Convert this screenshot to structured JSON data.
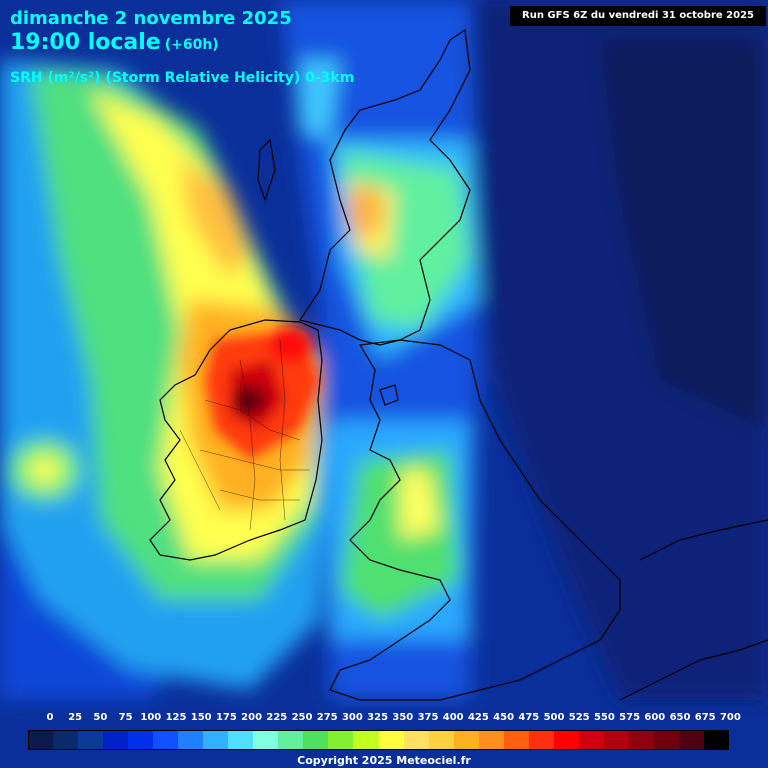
{
  "header": {
    "date": "dimanche 2 novembre 2025",
    "time": "19:00 locale",
    "lead": "(+60h)",
    "parameter": "SRH (m²/s²) (Storm Relative Helicity) 0-3km",
    "run": "Run GFS 6Z du vendredi 31 octobre 2025"
  },
  "legend": {
    "labels": [
      "0",
      "25",
      "50",
      "75",
      "100",
      "125",
      "150",
      "175",
      "200",
      "225",
      "250",
      "275",
      "300",
      "325",
      "350",
      "375",
      "400",
      "425",
      "450",
      "475",
      "500",
      "525",
      "550",
      "575",
      "600",
      "650",
      "675",
      "700"
    ],
    "colors": [
      "#0d1a4e",
      "#0a2a6e",
      "#0a3a9a",
      "#0020c8",
      "#0030e8",
      "#1050ff",
      "#2080ff",
      "#30b0ff",
      "#50e0ff",
      "#80ffe0",
      "#60f0a0",
      "#50e060",
      "#80f030",
      "#c0ff20",
      "#ffff40",
      "#ffe060",
      "#ffd040",
      "#ffb020",
      "#ff9020",
      "#ff6010",
      "#ff3010",
      "#ff0000",
      "#d00010",
      "#b00010",
      "#900010",
      "#700010",
      "#500010",
      "#000000"
    ]
  },
  "copyright": "Copyright 2025 Meteociel.fr"
}
